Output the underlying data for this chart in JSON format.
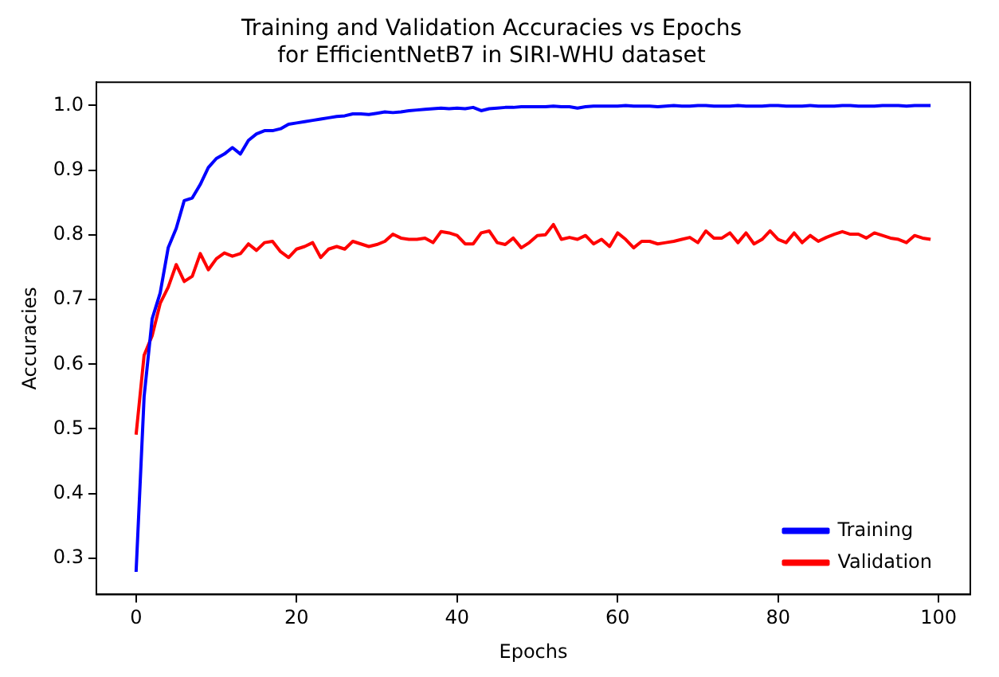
{
  "chart_data": {
    "type": "line",
    "title": "Training and Validation Accuracies vs Epochs\nfor EfficientNetB7 in SIRI-WHU dataset",
    "xlabel": "Epochs",
    "ylabel": "Accuracies",
    "x": [
      0,
      1,
      2,
      3,
      4,
      5,
      6,
      7,
      8,
      9,
      10,
      11,
      12,
      13,
      14,
      15,
      16,
      17,
      18,
      19,
      20,
      21,
      22,
      23,
      24,
      25,
      26,
      27,
      28,
      29,
      30,
      31,
      32,
      33,
      34,
      35,
      36,
      37,
      38,
      39,
      40,
      41,
      42,
      43,
      44,
      45,
      46,
      47,
      48,
      49,
      50,
      51,
      52,
      53,
      54,
      55,
      56,
      57,
      58,
      59,
      60,
      61,
      62,
      63,
      64,
      65,
      66,
      67,
      68,
      69,
      70,
      71,
      72,
      73,
      74,
      75,
      76,
      77,
      78,
      79,
      80,
      81,
      82,
      83,
      84,
      85,
      86,
      87,
      88,
      89,
      90,
      91,
      92,
      93,
      94,
      95,
      96,
      97,
      98,
      99
    ],
    "series": [
      {
        "name": "Training",
        "color": "#0000ff",
        "values": [
          0.279,
          0.55,
          0.67,
          0.71,
          0.78,
          0.81,
          0.853,
          0.857,
          0.878,
          0.904,
          0.918,
          0.925,
          0.935,
          0.925,
          0.946,
          0.956,
          0.961,
          0.961,
          0.964,
          0.971,
          0.973,
          0.975,
          0.977,
          0.979,
          0.981,
          0.983,
          0.984,
          0.987,
          0.987,
          0.986,
          0.988,
          0.99,
          0.989,
          0.99,
          0.992,
          0.993,
          0.994,
          0.995,
          0.996,
          0.995,
          0.996,
          0.995,
          0.997,
          0.992,
          0.995,
          0.996,
          0.997,
          0.997,
          0.998,
          0.998,
          0.998,
          0.998,
          0.999,
          0.998,
          0.998,
          0.996,
          0.998,
          0.999,
          0.999,
          0.999,
          0.999,
          1.0,
          0.999,
          0.999,
          0.999,
          0.998,
          0.999,
          1.0,
          0.999,
          0.999,
          1.0,
          1.0,
          0.999,
          0.999,
          0.999,
          1.0,
          0.999,
          0.999,
          0.999,
          1.0,
          1.0,
          0.999,
          0.999,
          0.999,
          1.0,
          0.999,
          0.999,
          0.999,
          1.0,
          1.0,
          0.999,
          0.999,
          0.999,
          1.0,
          1.0,
          1.0,
          0.999,
          1.0,
          1.0,
          1.0
        ]
      },
      {
        "name": "Validation",
        "color": "#ff0000",
        "values": [
          0.491,
          0.614,
          0.644,
          0.694,
          0.719,
          0.754,
          0.728,
          0.736,
          0.771,
          0.746,
          0.763,
          0.772,
          0.767,
          0.771,
          0.786,
          0.776,
          0.788,
          0.79,
          0.774,
          0.765,
          0.778,
          0.782,
          0.788,
          0.765,
          0.778,
          0.782,
          0.778,
          0.79,
          0.786,
          0.782,
          0.785,
          0.79,
          0.801,
          0.795,
          0.793,
          0.793,
          0.795,
          0.788,
          0.805,
          0.803,
          0.799,
          0.786,
          0.786,
          0.803,
          0.806,
          0.788,
          0.785,
          0.795,
          0.78,
          0.788,
          0.799,
          0.8,
          0.816,
          0.793,
          0.796,
          0.793,
          0.799,
          0.786,
          0.793,
          0.782,
          0.803,
          0.793,
          0.78,
          0.79,
          0.79,
          0.786,
          0.788,
          0.79,
          0.793,
          0.796,
          0.788,
          0.806,
          0.795,
          0.795,
          0.803,
          0.788,
          0.803,
          0.786,
          0.793,
          0.806,
          0.793,
          0.788,
          0.803,
          0.788,
          0.799,
          0.79,
          0.796,
          0.801,
          0.805,
          0.801,
          0.801,
          0.795,
          0.803,
          0.799,
          0.795,
          0.793,
          0.788,
          0.799,
          0.795,
          0.793
        ]
      }
    ],
    "xlim": [
      -4.95,
      103.95
    ],
    "xticks": [
      0,
      20,
      40,
      60,
      80,
      100
    ],
    "ylim": [
      0.244,
      1.036
    ],
    "yticks": [
      {
        "value": 0.3,
        "label": "0.3"
      },
      {
        "value": 0.4,
        "label": "0.4"
      },
      {
        "value": 0.5,
        "label": "0.5"
      },
      {
        "value": 0.6,
        "label": "0.6"
      },
      {
        "value": 0.7,
        "label": "0.7"
      },
      {
        "value": 0.8,
        "label": "0.8"
      },
      {
        "value": 0.9,
        "label": "0.9"
      },
      {
        "value": 1.0,
        "label": "1.0"
      }
    ],
    "grid": false,
    "legend": "bottom right",
    "marker": "none",
    "line_style": "solid"
  }
}
